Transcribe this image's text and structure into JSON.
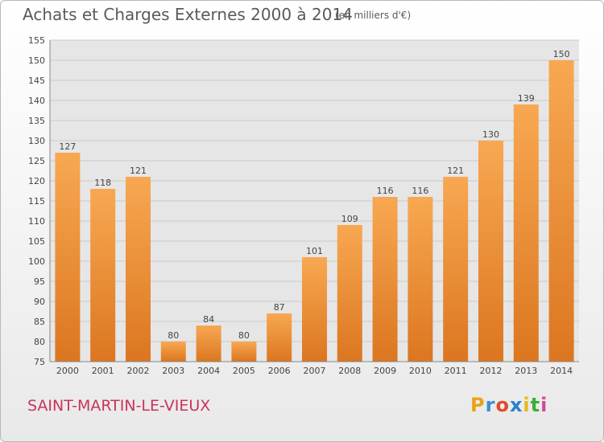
{
  "title": "Achats et Charges Externes 2000 à 2014",
  "unit": "(en milliers d'€)",
  "commune": "SAINT-MARTIN-LE-VIEUX",
  "logo": {
    "letters": [
      "P",
      "r",
      "o",
      "x",
      "i",
      "t",
      "i"
    ],
    "colors": [
      "#e8a21a",
      "#3b8fd8",
      "#e24a2a",
      "#2a7fd0",
      "#e8b818",
      "#3cae3a",
      "#d04a9a"
    ]
  },
  "colors": {
    "bar_light": "#f8a852",
    "bar_dark": "#dc7620",
    "grid": "#c9c9c9",
    "plot_bg": "#e6e6e6"
  },
  "chart_data": {
    "type": "bar",
    "title": "Achats et Charges Externes 2000 à 2014",
    "xlabel": "",
    "ylabel": "",
    "categories": [
      "2000",
      "2001",
      "2002",
      "2003",
      "2004",
      "2005",
      "2006",
      "2007",
      "2008",
      "2009",
      "2010",
      "2011",
      "2012",
      "2013",
      "2014"
    ],
    "values": [
      127,
      118,
      121,
      80,
      84,
      80,
      87,
      101,
      109,
      116,
      116,
      121,
      130,
      139,
      150
    ],
    "ylim": [
      75,
      155
    ],
    "yticks": [
      75,
      80,
      85,
      90,
      95,
      100,
      105,
      110,
      115,
      120,
      125,
      130,
      135,
      140,
      145,
      150,
      155
    ],
    "grid": true
  }
}
